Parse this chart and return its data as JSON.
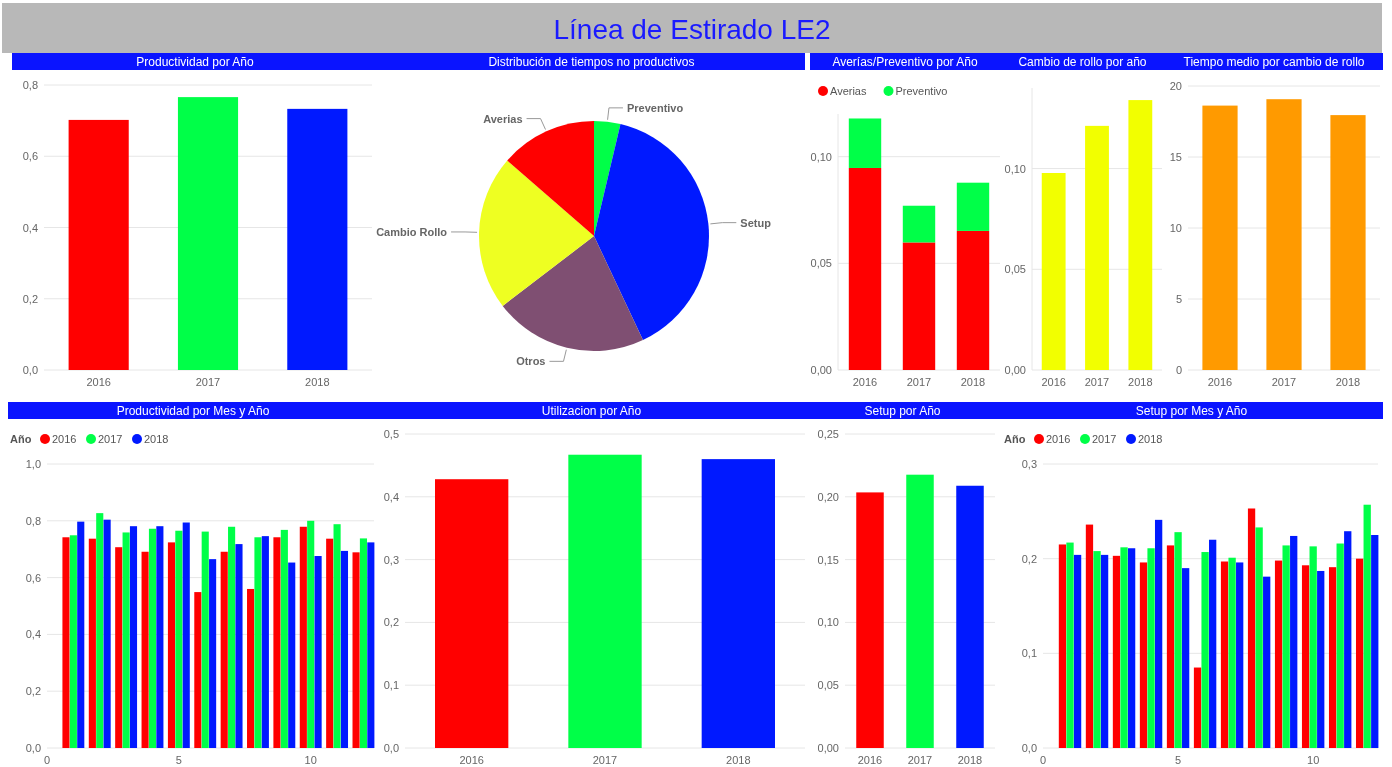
{
  "chart_data": [
    {
      "type": "other",
      "title": "Línea de Estirado LE2"
    },
    {
      "type": "bar",
      "title": "Productividad por Año",
      "categories": [
        "2016",
        "2017",
        "2018"
      ],
      "values": [
        0.702,
        0.766,
        0.733
      ],
      "colors": [
        "#ff0000",
        "#00ff48",
        "#0019ff"
      ],
      "ylim": [
        0,
        0.8
      ],
      "yticks": [
        {
          "value": 0,
          "label": "0,0"
        },
        {
          "value": 0.2,
          "label": "0,2"
        },
        {
          "value": 0.4,
          "label": "0,4"
        },
        {
          "value": 0.6,
          "label": "0,6"
        },
        {
          "value": 0.8,
          "label": "0,8"
        }
      ],
      "grid": "y"
    },
    {
      "type": "pie",
      "title": "Distribución de tiempos no productivos",
      "categories": [
        "Preventivo",
        "Setup",
        "Otros",
        "Cambio Rollo",
        "Averias"
      ],
      "values": [
        3.7,
        39.3,
        21.6,
        21.8,
        13.6
      ],
      "colors": [
        "#00ff48",
        "#0019ff",
        "#7f4f72",
        "#eeff22",
        "#ff0000"
      ]
    },
    {
      "type": "bar",
      "title": "Averías/Preventivo por Año",
      "categories": [
        "2016",
        "2017",
        "2018"
      ],
      "stacked": true,
      "legend": "top left",
      "series": [
        {
          "name": "Averias",
          "color": "#ff0000",
          "values": [
            0.0947,
            0.0598,
            0.0652
          ]
        },
        {
          "name": "Preventivo",
          "color": "#00ff48",
          "values": [
            0.0232,
            0.0172,
            0.0226
          ]
        }
      ],
      "ylim": [
        0,
        0.12
      ],
      "yticks": [
        {
          "value": 0,
          "label": "0,00"
        },
        {
          "value": 0.05,
          "label": "0,05"
        },
        {
          "value": 0.1,
          "label": "0,10"
        }
      ],
      "grid": "y"
    },
    {
      "type": "bar",
      "title": "Cambio de rollo por año",
      "categories": [
        "2016",
        "2017",
        "2018"
      ],
      "values": [
        0.0978,
        0.1212,
        0.134
      ],
      "colors": [
        "#f2ff00",
        "#f2ff00",
        "#f2ff00"
      ],
      "ylim": [
        0,
        0.14
      ],
      "yticks": [
        {
          "value": 0,
          "label": "0,00"
        },
        {
          "value": 0.05,
          "label": "0,05"
        },
        {
          "value": 0.1,
          "label": "0,10"
        }
      ],
      "grid": "y"
    },
    {
      "type": "bar",
      "title": "Tiempo medio por cambio de rollo",
      "categories": [
        "2016",
        "2017",
        "2018"
      ],
      "values": [
        18.62,
        19.07,
        17.95
      ],
      "colors": [
        "#ff9a00",
        "#ff9a00",
        "#ff9a00"
      ],
      "ylim": [
        0,
        20
      ],
      "yticks": [
        0,
        5,
        10,
        15,
        20
      ],
      "grid": "y"
    },
    {
      "type": "bar",
      "title": "Productividad por Mes y Año",
      "legend_title": "Año",
      "legend": "top left",
      "x": [
        1,
        2,
        3,
        4,
        5,
        6,
        7,
        8,
        9,
        10,
        11,
        12
      ],
      "xlim": [
        0,
        12.4
      ],
      "xticks": [
        0,
        5,
        10
      ],
      "series": [
        {
          "name": "2016",
          "color": "#ff0000",
          "values": [
            0.742,
            0.737,
            0.707,
            0.691,
            0.724,
            0.549,
            0.691,
            0.56,
            0.742,
            0.779,
            0.737,
            0.689
          ]
        },
        {
          "name": "2017",
          "color": "#00ff48",
          "values": [
            0.749,
            0.827,
            0.759,
            0.772,
            0.765,
            0.762,
            0.779,
            0.742,
            0.768,
            0.8,
            0.788,
            0.738
          ]
        },
        {
          "name": "2018",
          "color": "#0019ff",
          "values": [
            0.797,
            0.804,
            0.781,
            0.781,
            0.794,
            0.665,
            0.718,
            0.746,
            0.653,
            0.676,
            0.694,
            0.724
          ]
        }
      ],
      "ylim": [
        0,
        1
      ],
      "yticks": [
        {
          "value": 0,
          "label": "0,0"
        },
        {
          "value": 0.2,
          "label": "0,2"
        },
        {
          "value": 0.4,
          "label": "0,4"
        },
        {
          "value": 0.6,
          "label": "0,6"
        },
        {
          "value": 0.8,
          "label": "0,8"
        },
        {
          "value": 1,
          "label": "1,0"
        }
      ],
      "grid": "y"
    },
    {
      "type": "bar",
      "title": "Utilizacion por Año",
      "categories": [
        "2016",
        "2017",
        "2018"
      ],
      "values": [
        0.428,
        0.467,
        0.46
      ],
      "colors": [
        "#ff0000",
        "#00ff48",
        "#0019ff"
      ],
      "ylim": [
        0,
        0.5
      ],
      "yticks": [
        {
          "value": 0,
          "label": "0,0"
        },
        {
          "value": 0.1,
          "label": "0,1"
        },
        {
          "value": 0.2,
          "label": "0,2"
        },
        {
          "value": 0.3,
          "label": "0,3"
        },
        {
          "value": 0.4,
          "label": "0,4"
        },
        {
          "value": 0.5,
          "label": "0,5"
        }
      ],
      "grid": "y"
    },
    {
      "type": "bar",
      "title": "Setup por Año",
      "categories": [
        "2016",
        "2017",
        "2018"
      ],
      "values": [
        0.2035,
        0.2176,
        0.2088
      ],
      "colors": [
        "#ff0000",
        "#00ff48",
        "#0019ff"
      ],
      "ylim": [
        0,
        0.25
      ],
      "yticks": [
        {
          "value": 0,
          "label": "0,00"
        },
        {
          "value": 0.05,
          "label": "0,05"
        },
        {
          "value": 0.1,
          "label": "0,10"
        },
        {
          "value": 0.15,
          "label": "0,15"
        },
        {
          "value": 0.2,
          "label": "0,20"
        },
        {
          "value": 0.25,
          "label": "0,25"
        }
      ],
      "grid": "y"
    },
    {
      "type": "bar",
      "title": "Setup por Mes y Año",
      "legend_title": "Año",
      "legend": "top left",
      "x": [
        1,
        2,
        3,
        4,
        5,
        6,
        7,
        8,
        9,
        10,
        11,
        12
      ],
      "xlim": [
        0,
        12.4
      ],
      "xticks": [
        0,
        5,
        10
      ],
      "series": [
        {
          "name": "2016",
          "color": "#ff0000",
          "values": [
            0.215,
            0.236,
            0.203,
            0.196,
            0.214,
            0.085,
            0.197,
            0.253,
            0.198,
            0.193,
            0.191,
            0.2
          ]
        },
        {
          "name": "2017",
          "color": "#00ff48",
          "values": [
            0.217,
            0.208,
            0.212,
            0.211,
            0.228,
            0.207,
            0.201,
            0.233,
            0.214,
            0.213,
            0.216,
            0.257
          ]
        },
        {
          "name": "2018",
          "color": "#0019ff",
          "values": [
            0.204,
            0.204,
            0.211,
            0.241,
            0.19,
            0.22,
            0.196,
            0.181,
            0.224,
            0.187,
            0.229,
            0.225
          ]
        }
      ],
      "ylim": [
        0,
        0.3
      ],
      "yticks": [
        {
          "value": 0,
          "label": "0,0"
        },
        {
          "value": 0.1,
          "label": "0,1"
        },
        {
          "value": 0.2,
          "label": "0,2"
        },
        {
          "value": 0.3,
          "label": "0,3"
        }
      ],
      "grid": "y"
    }
  ]
}
